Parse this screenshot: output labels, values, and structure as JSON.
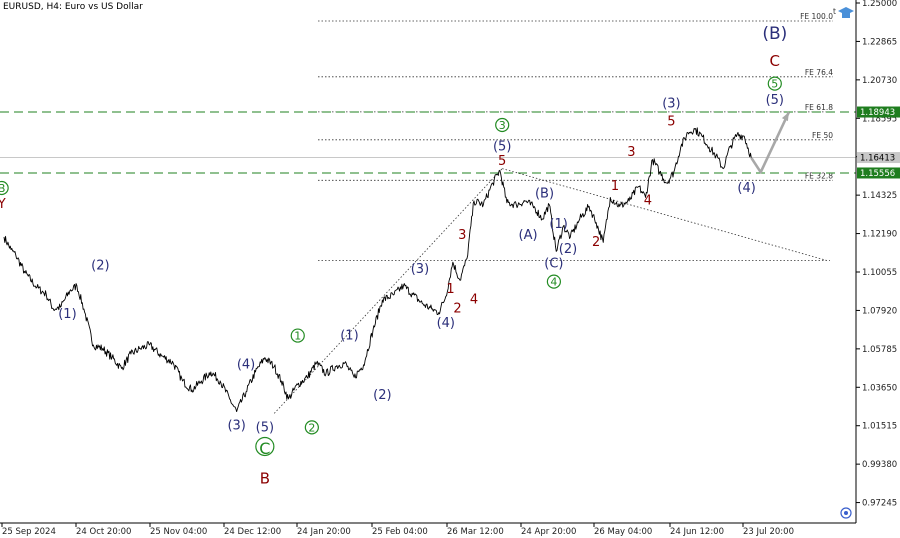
{
  "chart_data": {
    "type": "line",
    "title": "EURUSD, H4:  Euro vs US Dollar",
    "ylim": [
      0.9611,
      1.25
    ],
    "y_ticks": [
      "1.25000",
      "1.22865",
      "1.20730",
      "1.18595",
      "1.16460",
      "1.14325",
      "1.12190",
      "1.10055",
      "1.07920",
      "1.05785",
      "1.03650",
      "1.01515",
      "0.99380",
      "0.97245"
    ],
    "x_ticks": [
      "25 Sep 2024",
      "24 Oct 20:00",
      "25 Nov 04:00",
      "24 Dec 12:00",
      "24 Jan 20:00",
      "25 Feb 04:00",
      "26 Mar 12:00",
      "24 Apr 20:00",
      "26 May 04:00",
      "24 Jun 12:00",
      "23 Jul 20:00"
    ],
    "grid": false,
    "price_path": [
      {
        "d": 0,
        "v": 1.12
      },
      {
        "d": 3,
        "v": 1.113
      },
      {
        "d": 5,
        "v": 1.11
      },
      {
        "d": 9,
        "v": 1.1
      },
      {
        "d": 14,
        "v": 1.092
      },
      {
        "d": 18,
        "v": 1.088
      },
      {
        "d": 21,
        "v": 1.08
      },
      {
        "d": 24,
        "v": 1.081
      },
      {
        "d": 28,
        "v": 1.09
      },
      {
        "d": 31,
        "v": 1.093
      },
      {
        "d": 34,
        "v": 1.08
      },
      {
        "d": 38,
        "v": 1.06
      },
      {
        "d": 42,
        "v": 1.058
      },
      {
        "d": 46,
        "v": 1.053
      },
      {
        "d": 50,
        "v": 1.047
      },
      {
        "d": 54,
        "v": 1.055
      },
      {
        "d": 58,
        "v": 1.058
      },
      {
        "d": 62,
        "v": 1.06
      },
      {
        "d": 67,
        "v": 1.054
      },
      {
        "d": 72,
        "v": 1.05
      },
      {
        "d": 76,
        "v": 1.04
      },
      {
        "d": 80,
        "v": 1.035
      },
      {
        "d": 84,
        "v": 1.04
      },
      {
        "d": 88,
        "v": 1.045
      },
      {
        "d": 92,
        "v": 1.04
      },
      {
        "d": 96,
        "v": 1.03
      },
      {
        "d": 99,
        "v": 1.023
      },
      {
        "d": 103,
        "v": 1.034
      },
      {
        "d": 107,
        "v": 1.045
      },
      {
        "d": 111,
        "v": 1.053
      },
      {
        "d": 115,
        "v": 1.048
      },
      {
        "d": 118,
        "v": 1.04
      },
      {
        "d": 121,
        "v": 1.03
      },
      {
        "d": 125,
        "v": 1.038
      },
      {
        "d": 129,
        "v": 1.042
      },
      {
        "d": 133,
        "v": 1.05
      },
      {
        "d": 137,
        "v": 1.044
      },
      {
        "d": 141,
        "v": 1.048
      },
      {
        "d": 145,
        "v": 1.05
      },
      {
        "d": 149,
        "v": 1.042
      },
      {
        "d": 153,
        "v": 1.049
      },
      {
        "d": 157,
        "v": 1.068
      },
      {
        "d": 161,
        "v": 1.085
      },
      {
        "d": 166,
        "v": 1.088
      },
      {
        "d": 170,
        "v": 1.093
      },
      {
        "d": 174,
        "v": 1.088
      },
      {
        "d": 178,
        "v": 1.083
      },
      {
        "d": 182,
        "v": 1.08
      },
      {
        "d": 185,
        "v": 1.078
      },
      {
        "d": 188,
        "v": 1.087
      },
      {
        "d": 191,
        "v": 1.106
      },
      {
        "d": 194,
        "v": 1.096
      },
      {
        "d": 197,
        "v": 1.108
      },
      {
        "d": 200,
        "v": 1.14
      },
      {
        "d": 204,
        "v": 1.138
      },
      {
        "d": 208,
        "v": 1.15
      },
      {
        "d": 211,
        "v": 1.157
      },
      {
        "d": 214,
        "v": 1.139
      },
      {
        "d": 218,
        "v": 1.138
      },
      {
        "d": 222,
        "v": 1.14
      },
      {
        "d": 226,
        "v": 1.136
      },
      {
        "d": 229,
        "v": 1.13
      },
      {
        "d": 232,
        "v": 1.138
      },
      {
        "d": 235,
        "v": 1.112
      },
      {
        "d": 238,
        "v": 1.126
      },
      {
        "d": 241,
        "v": 1.12
      },
      {
        "d": 245,
        "v": 1.13
      },
      {
        "d": 249,
        "v": 1.137
      },
      {
        "d": 252,
        "v": 1.128
      },
      {
        "d": 255,
        "v": 1.117
      },
      {
        "d": 258,
        "v": 1.142
      },
      {
        "d": 262,
        "v": 1.137
      },
      {
        "d": 266,
        "v": 1.14
      },
      {
        "d": 270,
        "v": 1.148
      },
      {
        "d": 273,
        "v": 1.142
      },
      {
        "d": 276,
        "v": 1.163
      },
      {
        "d": 279,
        "v": 1.156
      },
      {
        "d": 282,
        "v": 1.15
      },
      {
        "d": 285,
        "v": 1.156
      },
      {
        "d": 288,
        "v": 1.17
      },
      {
        "d": 291,
        "v": 1.178
      },
      {
        "d": 294,
        "v": 1.18
      },
      {
        "d": 297,
        "v": 1.176
      },
      {
        "d": 300,
        "v": 1.17
      },
      {
        "d": 303,
        "v": 1.165
      },
      {
        "d": 306,
        "v": 1.158
      },
      {
        "d": 309,
        "v": 1.17
      },
      {
        "d": 312,
        "v": 1.177
      },
      {
        "d": 315,
        "v": 1.176
      },
      {
        "d": 318,
        "v": 1.164
      }
    ],
    "projection": [
      {
        "d": 318,
        "v": 1.164
      },
      {
        "d": 322,
        "v": 1.156
      },
      {
        "d": 334,
        "v": 1.1894
      }
    ],
    "fe_levels": [
      {
        "label": "FE 100.0",
        "v": 1.24
      },
      {
        "label": "FE 76.4",
        "v": 1.209
      },
      {
        "label": "FE 61.8",
        "v": 1.1895
      },
      {
        "label": "FE 50",
        "v": 1.174
      },
      {
        "label": "FE 32.8",
        "v": 1.1515
      }
    ],
    "horizontal_lines": [
      {
        "v": 1.18943,
        "label": "1.18943",
        "style": "dashed"
      },
      {
        "v": 1.15556,
        "label": "1.15556",
        "style": "dashed"
      },
      {
        "v": 1.16413,
        "label": "1.16413",
        "style": "current"
      }
    ],
    "extra_level": 1.107,
    "trend_lines": [
      {
        "from": {
          "d": 115,
          "v": 1.022
        },
        "to": {
          "d": 212,
          "v": 1.158
        }
      },
      {
        "from": {
          "d": 212,
          "v": 1.158
        },
        "to": {
          "d": 350,
          "v": 1.107
        }
      }
    ],
    "wave_labels": [
      {
        "text": "(2)",
        "d": 41,
        "v": 1.102,
        "style": "blue"
      },
      {
        "text": "(1)",
        "d": 27,
        "v": 1.075,
        "style": "blue"
      },
      {
        "text": "(4)",
        "d": 103,
        "v": 1.047,
        "style": "blue"
      },
      {
        "text": "(3)",
        "d": 99,
        "v": 1.013,
        "style": "blue"
      },
      {
        "text": "(5)",
        "d": 111,
        "v": 1.012,
        "style": "blue"
      },
      {
        "text": "C",
        "d": 111,
        "v": 1.0,
        "style": "bigcirclegreen"
      },
      {
        "text": "B",
        "d": 111,
        "v": 0.983,
        "style": "bigred"
      },
      {
        "text": "1",
        "d": 125,
        "v": 1.063,
        "style": "circlegreen"
      },
      {
        "text": "2",
        "d": 131,
        "v": 1.012,
        "style": "circlegreen"
      },
      {
        "text": "(1)",
        "d": 147,
        "v": 1.063,
        "style": "blue"
      },
      {
        "text": "(2)",
        "d": 161,
        "v": 1.03,
        "style": "blue"
      },
      {
        "text": "(3)",
        "d": 177,
        "v": 1.1,
        "style": "blue"
      },
      {
        "text": "(4)",
        "d": 188,
        "v": 1.07,
        "style": "blue"
      },
      {
        "text": "1",
        "d": 190,
        "v": 1.089,
        "style": "red"
      },
      {
        "text": "2",
        "d": 193,
        "v": 1.078,
        "style": "red"
      },
      {
        "text": "3",
        "d": 195,
        "v": 1.119,
        "style": "red"
      },
      {
        "text": "4",
        "d": 200,
        "v": 1.083,
        "style": "red"
      },
      {
        "text": "3",
        "d": 212,
        "v": 1.18,
        "style": "circlegreen"
      },
      {
        "text": "(5)",
        "d": 212,
        "v": 1.168,
        "style": "blue"
      },
      {
        "text": "5",
        "d": 212,
        "v": 1.16,
        "style": "red"
      },
      {
        "text": "(B)",
        "d": 230,
        "v": 1.142,
        "style": "blue"
      },
      {
        "text": "(A)",
        "d": 223,
        "v": 1.119,
        "style": "blue"
      },
      {
        "text": "(1)",
        "d": 236,
        "v": 1.125,
        "style": "blue"
      },
      {
        "text": "(2)",
        "d": 240,
        "v": 1.111,
        "style": "blue"
      },
      {
        "text": "(C)",
        "d": 234,
        "v": 1.103,
        "style": "blue"
      },
      {
        "text": "4",
        "d": 234,
        "v": 1.093,
        "style": "circlegreen"
      },
      {
        "text": "1",
        "d": 260,
        "v": 1.146,
        "style": "red"
      },
      {
        "text": "2",
        "d": 252,
        "v": 1.115,
        "style": "red"
      },
      {
        "text": "3",
        "d": 267,
        "v": 1.165,
        "style": "red"
      },
      {
        "text": "4",
        "d": 274,
        "v": 1.138,
        "style": "red"
      },
      {
        "text": "(3)",
        "d": 284,
        "v": 1.192,
        "style": "blue"
      },
      {
        "text": "5",
        "d": 284,
        "v": 1.182,
        "style": "red"
      },
      {
        "text": "(4)",
        "d": 316,
        "v": 1.145,
        "style": "blue"
      },
      {
        "text": "(B)",
        "d": 328,
        "v": 1.23,
        "style": "bigblue"
      },
      {
        "text": "C",
        "d": 328,
        "v": 1.215,
        "style": "bigred"
      },
      {
        "text": "5",
        "d": 328,
        "v": 1.203,
        "style": "circlegreen"
      },
      {
        "text": "(5)",
        "d": 328,
        "v": 1.194,
        "style": "blue"
      },
      {
        "text": "Y",
        "d": -1,
        "v": 1.136,
        "style": "red"
      },
      {
        "text": "B",
        "d": -1,
        "v": 1.145,
        "style": "circlegreen"
      }
    ]
  }
}
